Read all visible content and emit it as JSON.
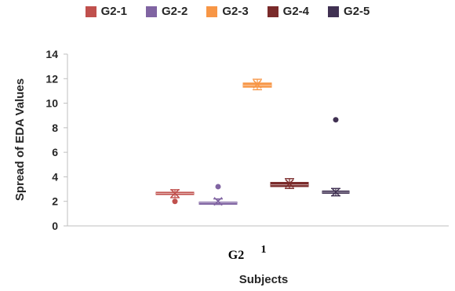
{
  "chart_data": {
    "type": "boxplot",
    "ylabel": "Spread of EDA Values",
    "xlabel": "Subjects",
    "ylim": [
      0,
      14
    ],
    "yticks": [
      0,
      2,
      4,
      6,
      8,
      10,
      12,
      14
    ],
    "category": "G2",
    "category_sublabel": "1",
    "legend_position": "top",
    "series": [
      {
        "name": "G2-1",
        "color": "#c0504d",
        "q1": 2.55,
        "median": 2.65,
        "q3": 2.75,
        "mean": 2.65,
        "min": 2.3,
        "max": 2.95,
        "outliers": [
          2.0
        ]
      },
      {
        "name": "G2-2",
        "color": "#8064a2",
        "q1": 1.85,
        "median": 1.9,
        "q3": 1.95,
        "mean": 2.0,
        "min": 1.75,
        "max": 2.2,
        "outliers": [
          3.2
        ]
      },
      {
        "name": "G2-3",
        "color": "#f79646",
        "q1": 11.3,
        "median": 11.45,
        "q3": 11.65,
        "mean": 11.55,
        "min": 11.1,
        "max": 11.95,
        "outliers": []
      },
      {
        "name": "G2-4",
        "color": "#7a2a2a",
        "q1": 3.2,
        "median": 3.35,
        "q3": 3.55,
        "mean": 3.45,
        "min": 3.05,
        "max": 3.85,
        "outliers": []
      },
      {
        "name": "G2-5",
        "color": "#403152",
        "q1": 2.65,
        "median": 2.75,
        "q3": 2.85,
        "mean": 2.75,
        "min": 2.45,
        "max": 3.05,
        "outliers": [
          8.65
        ]
      }
    ],
    "grid": false
  }
}
